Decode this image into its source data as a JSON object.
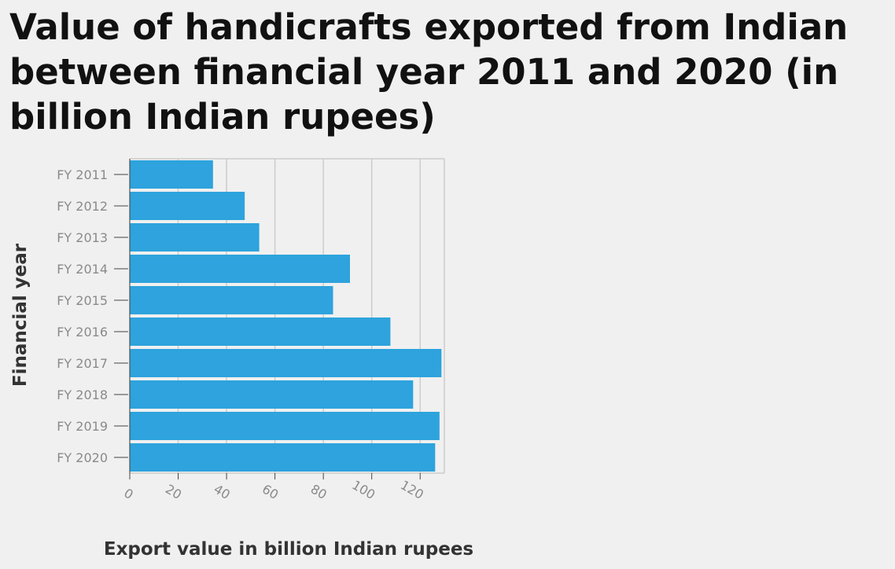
{
  "chart_data": {
    "type": "bar",
    "orientation": "horizontal",
    "title": "Value of handicrafts exported from Indian between financial year 2011 and 2020 (in billion Indian rupees)",
    "xlabel": "Export value in billion Indian rupees",
    "ylabel": "Financial year",
    "categories": [
      "FY 2011",
      "FY 2012",
      "FY 2013",
      "FY 2014",
      "FY 2015",
      "FY 2016",
      "FY 2017",
      "FY 2018",
      "FY 2019",
      "FY 2020"
    ],
    "values": [
      34.4,
      47.5,
      53.5,
      91,
      84,
      107.7,
      128.8,
      117.1,
      128,
      126.2
    ],
    "xlim": [
      0,
      130
    ],
    "xticks": [
      0,
      20,
      40,
      60,
      80,
      100,
      120
    ],
    "grid": "vertical",
    "legend": "none",
    "bar_color": "#2ea3dd",
    "grid_color": "#cccccc"
  }
}
